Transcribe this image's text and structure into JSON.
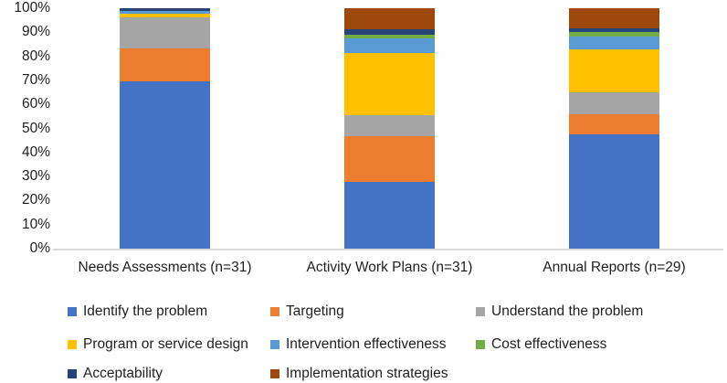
{
  "figure": {
    "background": "#ffffff",
    "text_color": "#1f1f1f",
    "axis_line_color": "#d9d9d9"
  },
  "chart_data": {
    "type": "bar",
    "stacked": true,
    "percent_stacked": true,
    "title": "",
    "xlabel": "",
    "ylabel": "",
    "legend_position": "bottom",
    "grid": false,
    "categories": [
      "Needs Assessments (n=31)",
      "Activity Work Plans (n=31)",
      "Annual Reports (n=29)"
    ],
    "series": [
      {
        "name": "Identify the problem",
        "color": "#4472c4",
        "values": [
          69.4,
          27.8,
          47.4
        ]
      },
      {
        "name": "Targeting",
        "color": "#ed7d31",
        "values": [
          13.9,
          19.0,
          8.6
        ]
      },
      {
        "name": "Understand the problem",
        "color": "#a5a5a5",
        "values": [
          12.9,
          8.9,
          9.1
        ]
      },
      {
        "name": "Program or service design",
        "color": "#ffc000",
        "values": [
          1.7,
          25.8,
          17.7
        ]
      },
      {
        "name": "Intervention effectiveness",
        "color": "#5b9bd5",
        "values": [
          1.1,
          5.8,
          5.6
        ]
      },
      {
        "name": "Cost effectiveness",
        "color": "#70ad47",
        "values": [
          0,
          1.5,
          1.9
        ]
      },
      {
        "name": "Acceptability",
        "color": "#264478",
        "values": [
          1.0,
          2.5,
          1.5
        ]
      },
      {
        "name": "Implementation strategies",
        "color": "#9e480e",
        "values": [
          0,
          8.7,
          8.2
        ]
      }
    ],
    "y_axis": {
      "min": 0,
      "max": 100,
      "tick_step": 10,
      "tick_labels": [
        "100%",
        "90%",
        "80%",
        "70%",
        "60%",
        "50%",
        "40%",
        "30%",
        "20%",
        "10%",
        "0%"
      ]
    }
  }
}
